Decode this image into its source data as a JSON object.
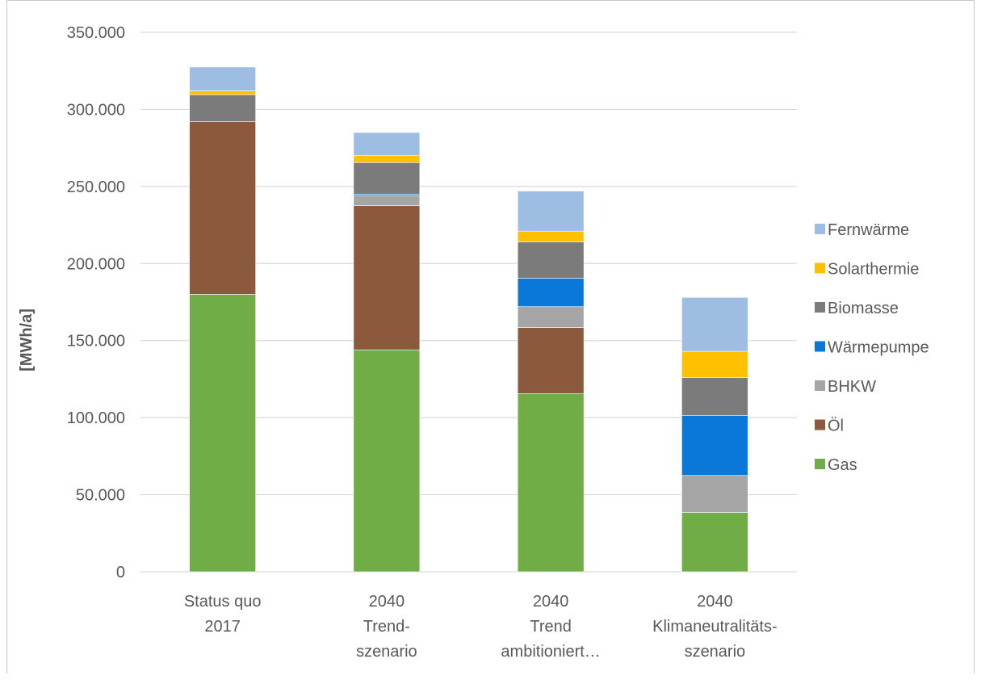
{
  "chart_data": {
    "type": "bar",
    "stacked": true,
    "title": "",
    "xlabel": "",
    "ylabel": "[MWh/a]",
    "ylim": [
      0,
      350000
    ],
    "ytick_step": 50000,
    "ytick_labels": [
      "0",
      "50.000",
      "100.000",
      "150.000",
      "200.000",
      "250.000",
      "300.000",
      "350.000"
    ],
    "grid": true,
    "legend_position": "right",
    "categories": [
      [
        "Status quo",
        "2017"
      ],
      [
        "2040",
        "Trend-",
        "szenario"
      ],
      [
        "2040",
        "Trend",
        "ambitioniert…"
      ],
      [
        "2040",
        "Klimaneutralitäts-",
        "szenario"
      ]
    ],
    "series": [
      {
        "name": "Gas",
        "color": "#70ad47",
        "values": [
          180000,
          144000,
          115500,
          38500
        ]
      },
      {
        "name": "Öl",
        "color": "#8b5a3c",
        "values": [
          112000,
          93500,
          43000,
          0
        ]
      },
      {
        "name": "BHKW",
        "color": "#a5a5a5",
        "values": [
          0,
          6500,
          13500,
          24000
        ]
      },
      {
        "name": "Wärmepumpe",
        "color": "#0a78d8",
        "values": [
          0,
          1000,
          18500,
          39000
        ]
      },
      {
        "name": "Biomasse",
        "color": "#7b7b7b",
        "values": [
          17500,
          20500,
          23500,
          24500
        ]
      },
      {
        "name": "Solarthermie",
        "color": "#ffc000",
        "values": [
          2500,
          4500,
          7000,
          17000
        ]
      },
      {
        "name": "Fernwärme",
        "color": "#9dbde3",
        "values": [
          15500,
          15000,
          26000,
          35000
        ]
      }
    ]
  }
}
